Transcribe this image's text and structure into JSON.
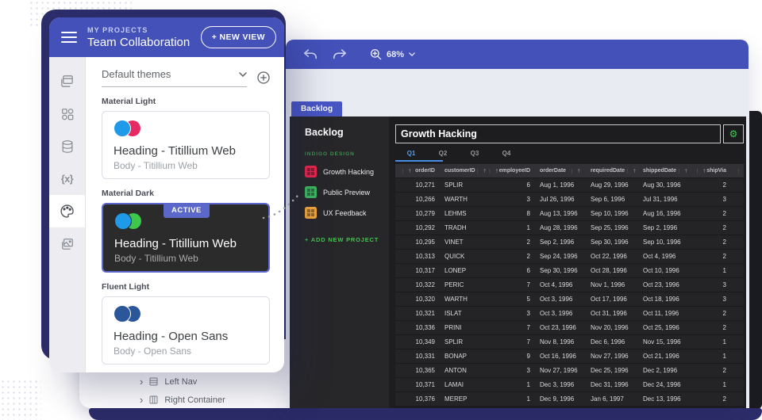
{
  "icons": {
    "gear": "⚙",
    "sort_asc": "↑",
    "column_menu": "⋮",
    "chevron_right": "›",
    "caret_down": "▾"
  },
  "colors": {
    "accent_indigo": "#4351b9",
    "navy_frame": "#2d2d6b",
    "active_badge": "#5b67c9",
    "green_accent": "#43c34d",
    "tab_blue": "#4a9df8",
    "tree_selected": "#4656c5"
  },
  "projects_panel": {
    "eyebrow": "MY PROJECTS",
    "title": "Team Collaboration",
    "new_view_button": "+ NEW VIEW",
    "rail_icons": [
      "views",
      "components",
      "data",
      "variables",
      "themes",
      "assets"
    ],
    "themes_select": {
      "value": "Default themes"
    },
    "theme_sections": [
      {
        "label": "Material Light",
        "heading": "Heading - Titillium Web",
        "body": "Body - Titillium Web",
        "swatches": [
          "#1e9ae8",
          "#e52a63"
        ],
        "variant": "light",
        "badge": ""
      },
      {
        "label": "Material Dark",
        "heading": "Heading - Titillium Web",
        "body": "Body - Titillium Web",
        "swatches": [
          "#1e9ae8",
          "#3fc64d"
        ],
        "variant": "dark",
        "badge": "ACTIVE"
      },
      {
        "label": "Fluent Light",
        "heading": "Heading - Open Sans",
        "body": "Body - Open Sans",
        "swatches": [
          "#2b579a",
          "#2b579a"
        ],
        "variant": "light",
        "badge": ""
      }
    ]
  },
  "layers_tree": {
    "selected": "Backlog",
    "items": [
      {
        "label": "Left Nav"
      },
      {
        "label": "Right Container"
      }
    ]
  },
  "canvas": {
    "toolbar": {
      "zoom": "68%"
    },
    "view_tab": "Backlog",
    "preview": {
      "sidebar": {
        "title": "Backlog",
        "group": "INDIGO DESIGN",
        "projects": [
          {
            "label": "Growth Hacking",
            "color": "#e5274e"
          },
          {
            "label": "Public Preview",
            "color": "#3eb860"
          },
          {
            "label": "UX Feedback",
            "color": "#f2a73b"
          }
        ],
        "add_project": "+ ADD NEW PROJECT"
      },
      "grid": {
        "title": "Growth Hacking",
        "tabs": [
          "Q1",
          "Q2",
          "Q3",
          "Q4"
        ],
        "active_tab": "Q1",
        "columns": [
          {
            "label": "orderID",
            "align": "right"
          },
          {
            "label": "customerID",
            "align": "left"
          },
          {
            "label": "employeeID",
            "align": "right"
          },
          {
            "label": "orderDate",
            "align": "left"
          },
          {
            "label": "requiredDate",
            "align": "left"
          },
          {
            "label": "shippedDate",
            "align": "left"
          },
          {
            "label": "shipVia",
            "align": "right"
          }
        ],
        "rows": [
          [
            "10,271",
            "SPLIR",
            "6",
            "Aug 1, 1996",
            "Aug 29, 1996",
            "Aug 30, 1996",
            "2"
          ],
          [
            "10,266",
            "WARTH",
            "3",
            "Jul 26, 1996",
            "Sep 6, 1996",
            "Jul 31, 1996",
            "3"
          ],
          [
            "10,279",
            "LEHMS",
            "8",
            "Aug 13, 1996",
            "Sep 10, 1996",
            "Aug 16, 1996",
            "2"
          ],
          [
            "10,292",
            "TRADH",
            "1",
            "Aug 28, 1996",
            "Sep 25, 1996",
            "Sep 2, 1996",
            "2"
          ],
          [
            "10,295",
            "VINET",
            "2",
            "Sep 2, 1996",
            "Sep 30, 1996",
            "Sep 10, 1996",
            "2"
          ],
          [
            "10,313",
            "QUICK",
            "2",
            "Sep 24, 1996",
            "Oct 22, 1996",
            "Oct 4, 1996",
            "2"
          ],
          [
            "10,317",
            "LONEP",
            "6",
            "Sep 30, 1996",
            "Oct 28, 1996",
            "Oct 10, 1996",
            "1"
          ],
          [
            "10,322",
            "PERIC",
            "7",
            "Oct 4, 1996",
            "Nov 1, 1996",
            "Oct 23, 1996",
            "3"
          ],
          [
            "10,320",
            "WARTH",
            "5",
            "Oct 3, 1996",
            "Oct 17, 1996",
            "Oct 18, 1996",
            "3"
          ],
          [
            "10,321",
            "ISLAT",
            "3",
            "Oct 3, 1996",
            "Oct 31, 1996",
            "Oct 11, 1996",
            "2"
          ],
          [
            "10,336",
            "PRINI",
            "7",
            "Oct 23, 1996",
            "Nov 20, 1996",
            "Oct 25, 1996",
            "2"
          ],
          [
            "10,349",
            "SPLIR",
            "7",
            "Nov 8, 1996",
            "Dec 6, 1996",
            "Nov 15, 1996",
            "1"
          ],
          [
            "10,331",
            "BONAP",
            "9",
            "Oct 16, 1996",
            "Nov 27, 1996",
            "Oct 21, 1996",
            "1"
          ],
          [
            "10,365",
            "ANTON",
            "3",
            "Nov 27, 1996",
            "Dec 25, 1996",
            "Dec 2, 1996",
            "2"
          ],
          [
            "10,371",
            "LAMAI",
            "1",
            "Dec 3, 1996",
            "Dec 31, 1996",
            "Dec 24, 1996",
            "1"
          ],
          [
            "10,376",
            "MEREP",
            "1",
            "Dec 9, 1996",
            "Jan 6, 1997",
            "Dec 13, 1996",
            "2"
          ]
        ]
      }
    }
  }
}
